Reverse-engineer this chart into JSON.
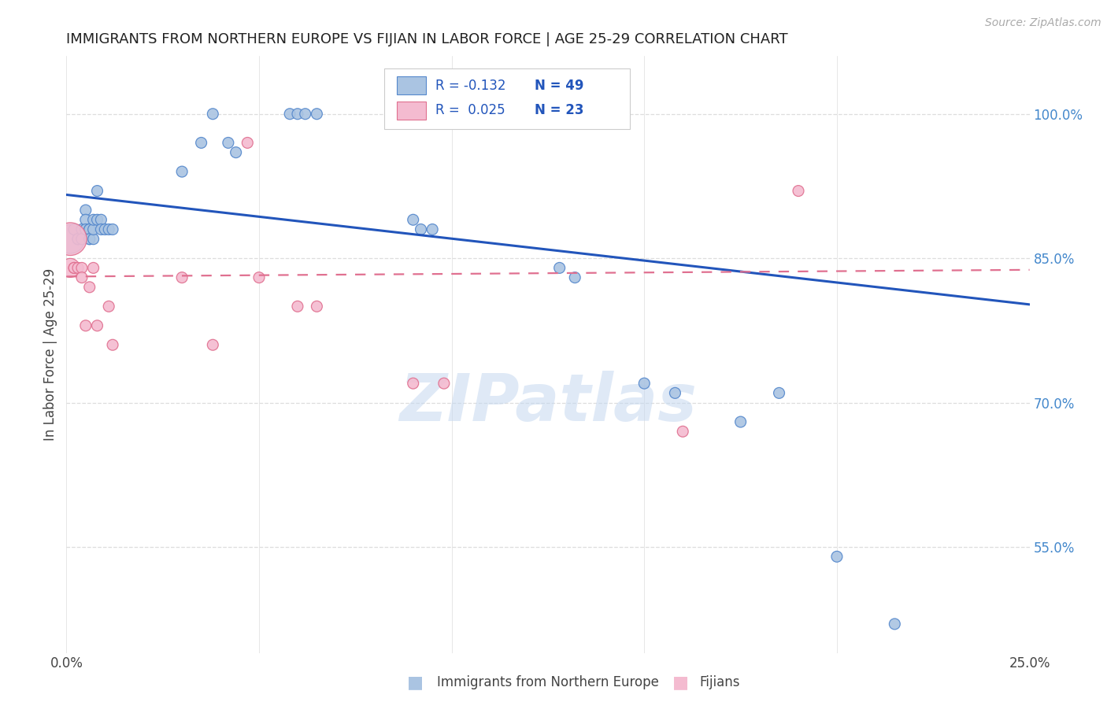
{
  "title": "IMMIGRANTS FROM NORTHERN EUROPE VS FIJIAN IN LABOR FORCE | AGE 25-29 CORRELATION CHART",
  "source": "Source: ZipAtlas.com",
  "ylabel": "In Labor Force | Age 25-29",
  "xlim": [
    0.0,
    0.25
  ],
  "ylim": [
    0.44,
    1.06
  ],
  "xtick_positions": [
    0.0,
    0.05,
    0.1,
    0.15,
    0.2,
    0.25
  ],
  "xticklabels": [
    "0.0%",
    "",
    "",
    "",
    "",
    "25.0%"
  ],
  "yticks_right": [
    0.55,
    0.7,
    0.85,
    1.0
  ],
  "ytick_right_labels": [
    "55.0%",
    "70.0%",
    "85.0%",
    "100.0%"
  ],
  "legend_blue_label": "Immigrants from Northern Europe",
  "legend_pink_label": "Fijians",
  "blue_color": "#aac4e2",
  "blue_edge_color": "#5588cc",
  "pink_color": "#f4bbd0",
  "pink_edge_color": "#e07090",
  "blue_line_color": "#2255bb",
  "pink_line_color": "#e07090",
  "blue_x": [
    0.001,
    0.002,
    0.002,
    0.003,
    0.003,
    0.003,
    0.004,
    0.004,
    0.004,
    0.005,
    0.005,
    0.005,
    0.005,
    0.006,
    0.006,
    0.006,
    0.006,
    0.007,
    0.007,
    0.007,
    0.008,
    0.008,
    0.009,
    0.009,
    0.01,
    0.011,
    0.012,
    0.03,
    0.035,
    0.038,
    0.042,
    0.044,
    0.058,
    0.06,
    0.062,
    0.065,
    0.09,
    0.092,
    0.095,
    0.12,
    0.125,
    0.128,
    0.132,
    0.15,
    0.158,
    0.175,
    0.185,
    0.2,
    0.215
  ],
  "blue_y": [
    0.87,
    0.88,
    0.88,
    0.87,
    0.87,
    0.87,
    0.88,
    0.87,
    0.87,
    0.88,
    0.9,
    0.89,
    0.88,
    0.88,
    0.87,
    0.88,
    0.87,
    0.87,
    0.88,
    0.89,
    0.92,
    0.89,
    0.89,
    0.88,
    0.88,
    0.88,
    0.88,
    0.94,
    0.97,
    1.0,
    0.97,
    0.96,
    1.0,
    1.0,
    1.0,
    1.0,
    0.89,
    0.88,
    0.88,
    1.0,
    1.0,
    0.84,
    0.83,
    0.72,
    0.71,
    0.68,
    0.71,
    0.54,
    0.47
  ],
  "blue_sizes": [
    700,
    100,
    100,
    100,
    100,
    100,
    100,
    100,
    100,
    100,
    100,
    100,
    100,
    100,
    100,
    100,
    100,
    100,
    100,
    100,
    100,
    100,
    100,
    100,
    100,
    100,
    100,
    100,
    100,
    100,
    100,
    100,
    100,
    100,
    100,
    100,
    100,
    100,
    100,
    100,
    100,
    100,
    100,
    100,
    100,
    100,
    100,
    100,
    100
  ],
  "pink_x": [
    0.001,
    0.001,
    0.002,
    0.002,
    0.003,
    0.004,
    0.004,
    0.005,
    0.006,
    0.007,
    0.008,
    0.011,
    0.012,
    0.03,
    0.038,
    0.047,
    0.05,
    0.06,
    0.065,
    0.09,
    0.098,
    0.16,
    0.19
  ],
  "pink_y": [
    0.87,
    0.84,
    0.84,
    0.84,
    0.84,
    0.84,
    0.83,
    0.78,
    0.82,
    0.84,
    0.78,
    0.8,
    0.76,
    0.83,
    0.76,
    0.97,
    0.83,
    0.8,
    0.8,
    0.72,
    0.72,
    0.67,
    0.92
  ],
  "pink_sizes": [
    900,
    300,
    100,
    100,
    100,
    100,
    100,
    100,
    100,
    100,
    100,
    100,
    100,
    100,
    100,
    100,
    100,
    100,
    100,
    100,
    100,
    100,
    100
  ],
  "blue_trend_x": [
    0.0,
    0.25
  ],
  "blue_trend_y": [
    0.916,
    0.802
  ],
  "pink_trend_x": [
    0.0,
    0.25
  ],
  "pink_trend_y": [
    0.831,
    0.838
  ],
  "watermark_text": "ZIPatlas",
  "bg_color": "#ffffff",
  "grid_color": "#dddddd"
}
